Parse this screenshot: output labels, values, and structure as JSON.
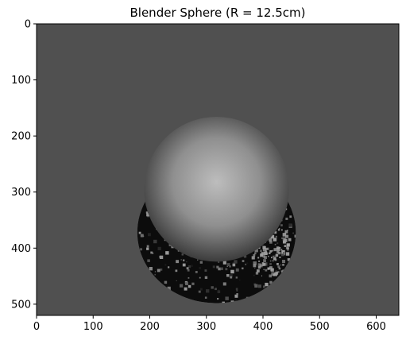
{
  "chart_data": {
    "type": "heatmap",
    "title": "Blender Sphere (R = 12.5cm)",
    "xlabel": "",
    "ylabel": "",
    "xlim": [
      0,
      640
    ],
    "ylim": [
      520,
      0
    ],
    "x_ticks": [
      0,
      100,
      200,
      300,
      400,
      500,
      600
    ],
    "y_ticks": [
      0,
      100,
      200,
      300,
      400,
      500
    ],
    "x_tick_labels": [
      "0",
      "100",
      "200",
      "300",
      "400",
      "500",
      "600"
    ],
    "y_tick_labels": [
      "0",
      "100",
      "200",
      "300",
      "400",
      "500"
    ],
    "colormap": "gray",
    "background_color": "#505050",
    "sphere": {
      "center_x": 318,
      "center_y": 295,
      "radius": 128,
      "highlight_color": "#bdbdbd",
      "edge_color": "#3c3c3c"
    },
    "lower_artifact": {
      "center_x": 318,
      "center_y": 372,
      "radius_x": 140,
      "radius_y": 125,
      "dark_color": "#0c0c0c",
      "noise_color": "#a0a0a0"
    }
  }
}
